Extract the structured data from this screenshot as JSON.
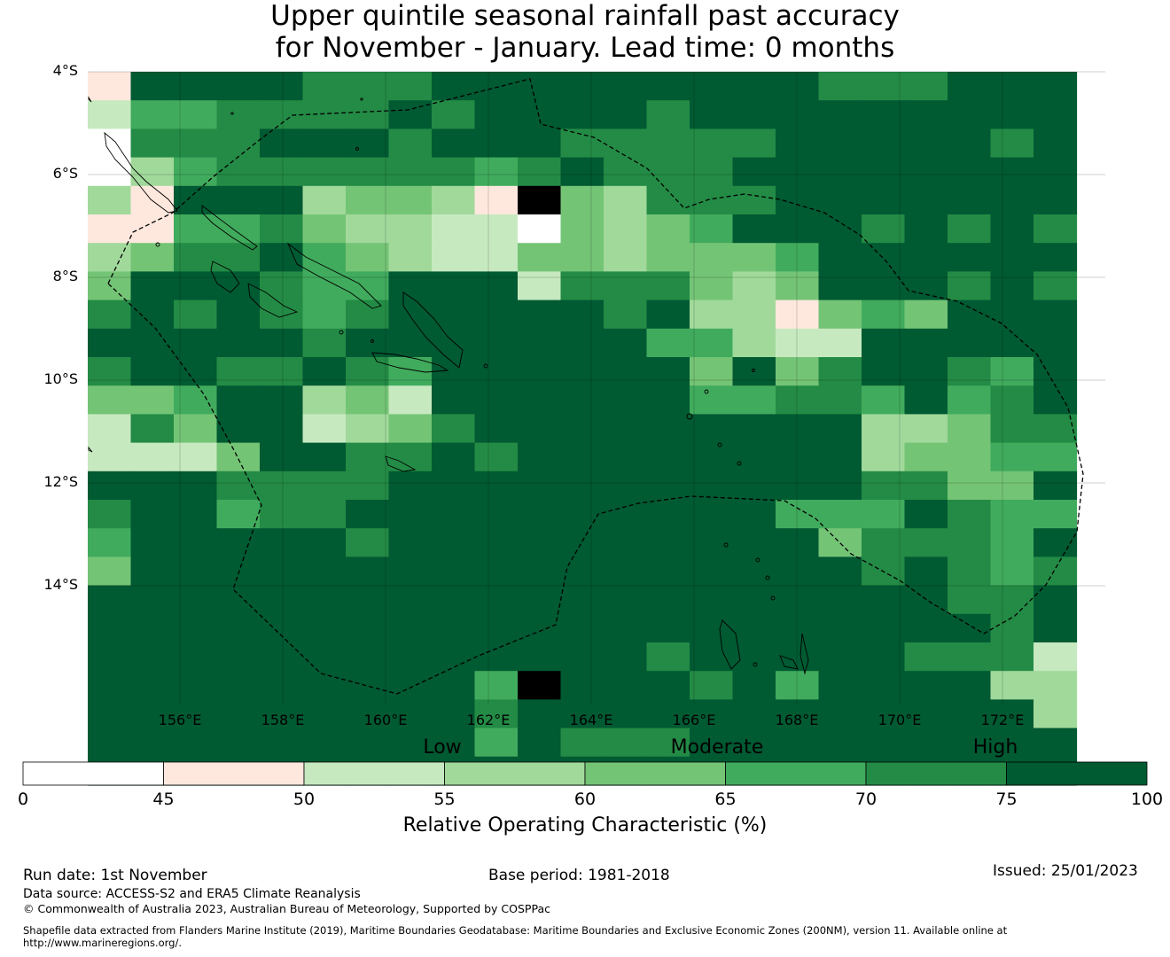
{
  "title": {
    "line1": "Upper quintile seasonal rainfall past accuracy",
    "line2": "for November - January. Lead time: 0 months"
  },
  "map": {
    "lat_labels": [
      "4°S",
      "6°S",
      "8°S",
      "10°S",
      "12°S",
      "14°S"
    ],
    "lon_labels": [
      "156°E",
      "158°E",
      "160°E",
      "162°E",
      "164°E",
      "166°E",
      "168°E",
      "170°E",
      "172°E"
    ],
    "colors": [
      "#ffffff",
      "#fee8de",
      "#c7e9c0",
      "#a1d99b",
      "#74c476",
      "#41ab5d",
      "#238b45",
      "#005a32"
    ],
    "grid_rows": [
      "17777666777777777666777",
      "25566667677776777777777",
      "06667776777666667777767",
      "03566666656766677777777",
      "31777344318436667777777",
      "11556433220434577767676",
      "34667543224434445777777",
      "47776557772666434777676",
      "67676567777767331454777",
      "77777677777775532277777",
      "67766765777777474677657",
      "44577342777777556657567",
      "26477234677777777733466",
      "22247766767777777734455",
      "77766667777777777766447",
      "67756677777777775557655",
      "57777767777777777466657",
      "47777777777777777767656",
      "77777777777777777777667",
      "77777777777777777777767",
      "77777777777776777776662",
      "77777777758777675777733",
      "77777777767777777777773",
      "77777777757666777777777",
      "77777777777777777777777"
    ]
  },
  "colorbar": {
    "category_labels": [
      "Low",
      "Moderate",
      "High"
    ],
    "ticks": [
      "0",
      "45",
      "50",
      "55",
      "60",
      "65",
      "70",
      "75",
      "100"
    ],
    "title": "Relative Operating Characteristic (%)"
  },
  "footer": {
    "run_date": "Run date: 1st November",
    "base_period": "Base period: 1981-2018",
    "issued": "Issued: 25/01/2023",
    "data_source": "Data source: ACCESS-S2 and ERA5 Climate Reanalysis",
    "copyright": "© Commonwealth of Australia 2023, Australian Bureau of Meteorology, Supported by COSPPac",
    "shapefile_1": "Shapefile data extracted from Flanders Marine Institute (2019), Maritime Boundaries Geodatabase: Maritime Boundaries and Exclusive Economic Zones (200NM), version 11. Available online at",
    "shapefile_2": "http://www.marineregions.org/."
  }
}
